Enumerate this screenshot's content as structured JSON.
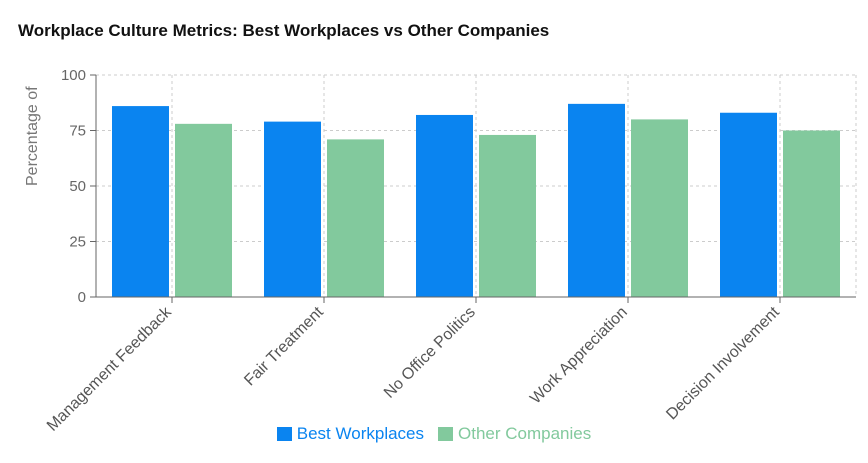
{
  "chart_data": {
    "type": "bar",
    "title": "Workplace Culture Metrics: Best Workplaces vs Other Companies",
    "ylabel": "Percentage of",
    "xlabel": "",
    "ylim": [
      0,
      100
    ],
    "yticks": [
      0,
      25,
      50,
      75,
      100
    ],
    "grid": true,
    "legend_position": "bottom",
    "categories": [
      "Management Feedback",
      "Fair Treatment",
      "No Office Politics",
      "Work Appreciation",
      "Decision Involvement"
    ],
    "series": [
      {
        "name": "Best Workplaces",
        "color": "#0a84f0",
        "values": [
          86,
          79,
          82,
          87,
          83
        ]
      },
      {
        "name": "Other Companies",
        "color": "#82c99d",
        "values": [
          78,
          71,
          73,
          80,
          75
        ]
      }
    ]
  }
}
